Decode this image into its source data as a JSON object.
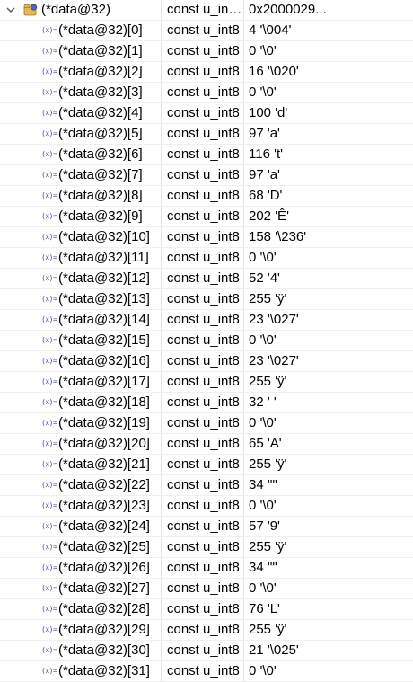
{
  "parent": {
    "name": "(*data@32)",
    "type": "const u_int...",
    "value": "0x2000029...",
    "expanded": true,
    "icon": "variable-pointer-icon"
  },
  "children": [
    {
      "name": "(*data@32)[0]",
      "type": "const u_int8",
      "value": "4 '\\004'"
    },
    {
      "name": "(*data@32)[1]",
      "type": "const u_int8",
      "value": "0 '\\0'"
    },
    {
      "name": "(*data@32)[2]",
      "type": "const u_int8",
      "value": "16 '\\020'"
    },
    {
      "name": "(*data@32)[3]",
      "type": "const u_int8",
      "value": "0 '\\0'"
    },
    {
      "name": "(*data@32)[4]",
      "type": "const u_int8",
      "value": "100 'd'"
    },
    {
      "name": "(*data@32)[5]",
      "type": "const u_int8",
      "value": "97 'a'"
    },
    {
      "name": "(*data@32)[6]",
      "type": "const u_int8",
      "value": "116 't'"
    },
    {
      "name": "(*data@32)[7]",
      "type": "const u_int8",
      "value": "97 'a'"
    },
    {
      "name": "(*data@32)[8]",
      "type": "const u_int8",
      "value": "68 'D'"
    },
    {
      "name": "(*data@32)[9]",
      "type": "const u_int8",
      "value": "202 'Ê'"
    },
    {
      "name": "(*data@32)[10]",
      "type": "const u_int8",
      "value": "158 '\\236'"
    },
    {
      "name": "(*data@32)[11]",
      "type": "const u_int8",
      "value": "0 '\\0'"
    },
    {
      "name": "(*data@32)[12]",
      "type": "const u_int8",
      "value": "52 '4'"
    },
    {
      "name": "(*data@32)[13]",
      "type": "const u_int8",
      "value": "255 'ÿ'"
    },
    {
      "name": "(*data@32)[14]",
      "type": "const u_int8",
      "value": "23 '\\027'"
    },
    {
      "name": "(*data@32)[15]",
      "type": "const u_int8",
      "value": "0 '\\0'"
    },
    {
      "name": "(*data@32)[16]",
      "type": "const u_int8",
      "value": "23 '\\027'"
    },
    {
      "name": "(*data@32)[17]",
      "type": "const u_int8",
      "value": "255 'ÿ'"
    },
    {
      "name": "(*data@32)[18]",
      "type": "const u_int8",
      "value": "32 ' '"
    },
    {
      "name": "(*data@32)[19]",
      "type": "const u_int8",
      "value": "0 '\\0'"
    },
    {
      "name": "(*data@32)[20]",
      "type": "const u_int8",
      "value": "65 'A'"
    },
    {
      "name": "(*data@32)[21]",
      "type": "const u_int8",
      "value": "255 'ÿ'"
    },
    {
      "name": "(*data@32)[22]",
      "type": "const u_int8",
      "value": "34 '\"'"
    },
    {
      "name": "(*data@32)[23]",
      "type": "const u_int8",
      "value": "0 '\\0'"
    },
    {
      "name": "(*data@32)[24]",
      "type": "const u_int8",
      "value": "57 '9'"
    },
    {
      "name": "(*data@32)[25]",
      "type": "const u_int8",
      "value": "255 'ÿ'"
    },
    {
      "name": "(*data@32)[26]",
      "type": "const u_int8",
      "value": "34 '\"'"
    },
    {
      "name": "(*data@32)[27]",
      "type": "const u_int8",
      "value": "0 '\\0'"
    },
    {
      "name": "(*data@32)[28]",
      "type": "const u_int8",
      "value": "76 'L'"
    },
    {
      "name": "(*data@32)[29]",
      "type": "const u_int8",
      "value": "255 'ÿ'"
    },
    {
      "name": "(*data@32)[30]",
      "type": "const u_int8",
      "value": "21 '\\025'"
    },
    {
      "name": "(*data@32)[31]",
      "type": "const u_int8",
      "value": "0 '\\0'"
    }
  ],
  "child_icon": "variable-primitive-icon",
  "child_icon_glyph": "(x)=",
  "colors": {
    "icon_blue": "#3b4f9a",
    "folder_yellow": "#e8b84a",
    "row_border": "#f0f0f0",
    "column_border": "#e4e4e4"
  }
}
